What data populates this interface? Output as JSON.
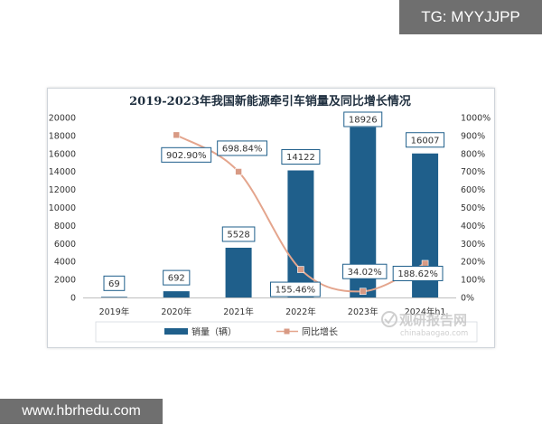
{
  "badges": {
    "top_right": "TG: MYYJJPP",
    "bottom_left": "www.hbrhedu.com"
  },
  "watermark": {
    "brand": "观研报告网",
    "domain": "chinabaogao.com"
  },
  "colors": {
    "bar": "#1f5f8b",
    "line": "#e4a58d",
    "marker": "#d89a84",
    "label_border": "#1f5f8b",
    "grid": "#e6e6e6"
  },
  "chart_data": {
    "type": "bar",
    "title": "2019-2023年我国新能源牵引车销量及同比增长情况",
    "categories": [
      "2019年",
      "2020年",
      "2021年",
      "2022年",
      "2023年",
      "2024年h1"
    ],
    "series": [
      {
        "name": "销量（辆）",
        "type": "bar",
        "axis": "left",
        "values": [
          69,
          692,
          5528,
          14122,
          18926,
          16007
        ],
        "labels": [
          "69",
          "692",
          "5528",
          "14122",
          "18926",
          "16007"
        ]
      },
      {
        "name": "同比增长",
        "type": "line",
        "axis": "right",
        "values": [
          null,
          902.9,
          698.84,
          155.46,
          34.02,
          188.62
        ],
        "labels": [
          "",
          "902.90%",
          "698.84%",
          "155.46%",
          "34.02%",
          "188.62%"
        ]
      }
    ],
    "y_left": {
      "ylim": [
        0,
        20000
      ],
      "ticks": [
        "0",
        "2000",
        "4000",
        "6000",
        "8000",
        "10000",
        "12000",
        "14000",
        "16000",
        "18000",
        "20000"
      ]
    },
    "y_right": {
      "ylim": [
        0,
        1000
      ],
      "ticks": [
        "0%",
        "100%",
        "200%",
        "300%",
        "400%",
        "500%",
        "600%",
        "700%",
        "800%",
        "900%",
        "1000%"
      ]
    },
    "grid": false,
    "legend_position": "bottom"
  }
}
